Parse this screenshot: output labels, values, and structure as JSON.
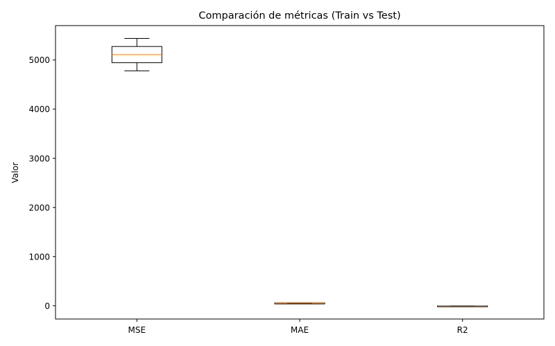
{
  "chart_data": {
    "type": "box",
    "title": "Comparación de métricas (Train vs Test)",
    "xlabel": "",
    "ylabel": "Valor",
    "categories": [
      "MSE",
      "MAE",
      "R2"
    ],
    "boxes": [
      {
        "category": "MSE",
        "whisker_low": 4780,
        "q1": 4945,
        "median": 5110,
        "q3": 5275,
        "whisker_high": 5440
      },
      {
        "category": "MAE",
        "whisker_low": 53,
        "q1": 55,
        "median": 57,
        "q3": 59,
        "whisker_high": 61
      },
      {
        "category": "R2",
        "whisker_low": 0.18,
        "q1": 0.2,
        "median": 0.22,
        "q3": 0.24,
        "whisker_high": 0.26
      }
    ],
    "ylim": [
      -270,
      5700
    ],
    "yticks": [
      0,
      1000,
      2000,
      3000,
      4000,
      5000
    ],
    "grid": false,
    "colors": {
      "box": "#000000",
      "median": "#ff7f0e"
    }
  }
}
